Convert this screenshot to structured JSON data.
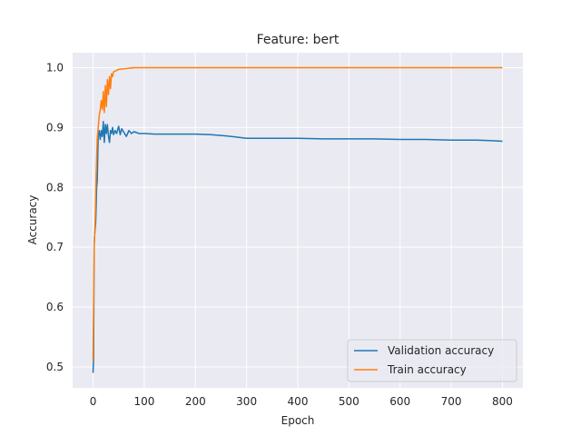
{
  "chart_data": {
    "type": "line",
    "title": "Feature: bert",
    "xlabel": "Epoch",
    "ylabel": "Accuracy",
    "xlim": [
      -40,
      840
    ],
    "ylim": [
      0.465,
      1.025
    ],
    "xticks": [
      0,
      100,
      200,
      300,
      400,
      500,
      600,
      700,
      800
    ],
    "yticks": [
      0.5,
      0.6,
      0.7,
      0.8,
      0.9,
      1.0
    ],
    "ytick_labels": [
      "0.5",
      "0.6",
      "0.7",
      "0.8",
      "0.9",
      "1.0"
    ],
    "grid": true,
    "legend_position": "lower-right",
    "series": [
      {
        "name": "Validation accuracy",
        "color": "#1f77b4",
        "points": [
          [
            0,
            0.49
          ],
          [
            1,
            0.515
          ],
          [
            2,
            0.705
          ],
          [
            3,
            0.72
          ],
          [
            5,
            0.74
          ],
          [
            7,
            0.8
          ],
          [
            8,
            0.81
          ],
          [
            10,
            0.885
          ],
          [
            12,
            0.895
          ],
          [
            14,
            0.88
          ],
          [
            16,
            0.895
          ],
          [
            18,
            0.885
          ],
          [
            20,
            0.91
          ],
          [
            22,
            0.875
          ],
          [
            24,
            0.905
          ],
          [
            26,
            0.89
          ],
          [
            28,
            0.905
          ],
          [
            30,
            0.885
          ],
          [
            32,
            0.875
          ],
          [
            34,
            0.895
          ],
          [
            36,
            0.89
          ],
          [
            38,
            0.9
          ],
          [
            40,
            0.888
          ],
          [
            43,
            0.895
          ],
          [
            46,
            0.89
          ],
          [
            50,
            0.902
          ],
          [
            53,
            0.888
          ],
          [
            56,
            0.898
          ],
          [
            60,
            0.892
          ],
          [
            65,
            0.885
          ],
          [
            70,
            0.895
          ],
          [
            75,
            0.89
          ],
          [
            80,
            0.893
          ],
          [
            90,
            0.89
          ],
          [
            100,
            0.89
          ],
          [
            120,
            0.889
          ],
          [
            150,
            0.889
          ],
          [
            200,
            0.889
          ],
          [
            230,
            0.888
          ],
          [
            260,
            0.886
          ],
          [
            280,
            0.884
          ],
          [
            300,
            0.882
          ],
          [
            350,
            0.882
          ],
          [
            400,
            0.882
          ],
          [
            450,
            0.881
          ],
          [
            500,
            0.881
          ],
          [
            550,
            0.881
          ],
          [
            600,
            0.88
          ],
          [
            650,
            0.88
          ],
          [
            700,
            0.879
          ],
          [
            750,
            0.879
          ],
          [
            780,
            0.878
          ],
          [
            800,
            0.877
          ]
        ]
      },
      {
        "name": "Train accuracy",
        "color": "#ff7f0e",
        "points": [
          [
            0,
            0.51
          ],
          [
            1,
            0.6
          ],
          [
            2,
            0.7
          ],
          [
            4,
            0.74
          ],
          [
            6,
            0.82
          ],
          [
            8,
            0.88
          ],
          [
            10,
            0.9
          ],
          [
            12,
            0.92
          ],
          [
            14,
            0.93
          ],
          [
            16,
            0.945
          ],
          [
            18,
            0.93
          ],
          [
            20,
            0.96
          ],
          [
            22,
            0.925
          ],
          [
            24,
            0.97
          ],
          [
            26,
            0.935
          ],
          [
            28,
            0.98
          ],
          [
            30,
            0.955
          ],
          [
            32,
            0.985
          ],
          [
            34,
            0.965
          ],
          [
            36,
            0.99
          ],
          [
            38,
            0.985
          ],
          [
            40,
            0.993
          ],
          [
            45,
            0.995
          ],
          [
            50,
            0.997
          ],
          [
            60,
            0.998
          ],
          [
            70,
            0.999
          ],
          [
            80,
            1.0
          ],
          [
            100,
            1.0
          ],
          [
            200,
            1.0
          ],
          [
            300,
            1.0
          ],
          [
            400,
            1.0
          ],
          [
            500,
            1.0
          ],
          [
            600,
            1.0
          ],
          [
            700,
            1.0
          ],
          [
            800,
            1.0
          ]
        ]
      }
    ]
  }
}
